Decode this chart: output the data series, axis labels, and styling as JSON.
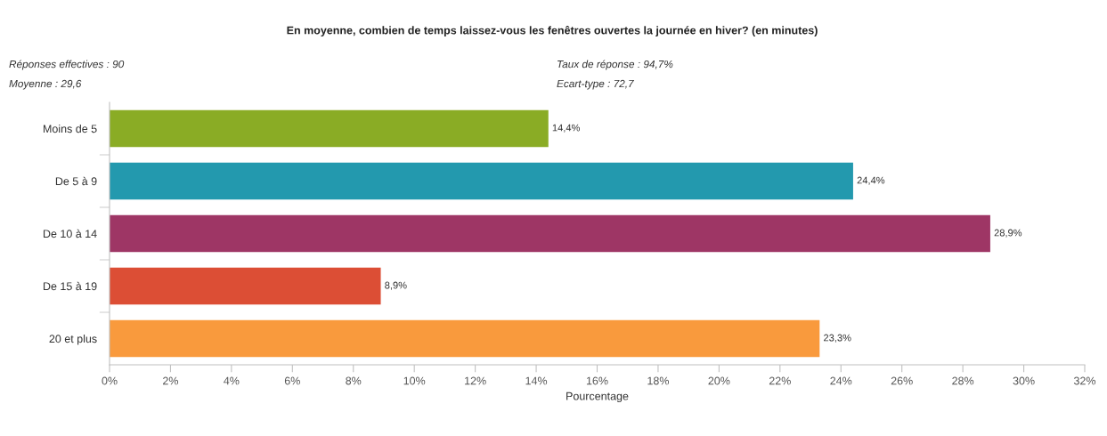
{
  "chart_data": {
    "type": "bar",
    "orientation": "horizontal",
    "title": "En moyenne, combien de temps laissez-vous les fenêtres ouvertes la journée en hiver? (en minutes)",
    "annotations": [
      "Réponses effectives : 90",
      "Moyenne : 29,6",
      "Taux de réponse : 94,7%",
      "Ecart-type : 72,7"
    ],
    "categories": [
      "Moins de 5",
      "De 5 à 9",
      "De 10 à 14",
      "De 15 à 19",
      "20 et plus"
    ],
    "values": [
      14.4,
      24.4,
      28.9,
      8.9,
      23.3
    ],
    "colors": [
      "#8aac25",
      "#2399ae",
      "#9e3665",
      "#dc4e35",
      "#f99a3d"
    ],
    "value_labels": [
      "14,4%",
      "24,4%",
      "28,9%",
      "8,9%",
      "23,3%"
    ],
    "xlabel": "Pourcentage",
    "xlim": [
      0,
      32
    ],
    "xticks": [
      {
        "value": 0,
        "label": "0%"
      },
      {
        "value": 2,
        "label": "2%"
      },
      {
        "value": 4,
        "label": "4%"
      },
      {
        "value": 6,
        "label": "6%"
      },
      {
        "value": 8,
        "label": "8%"
      },
      {
        "value": 10,
        "label": "10%"
      },
      {
        "value": 12,
        "label": "12%"
      },
      {
        "value": 14,
        "label": "14%"
      },
      {
        "value": 16,
        "label": "16%"
      },
      {
        "value": 18,
        "label": "18%"
      },
      {
        "value": 20,
        "label": "20%"
      },
      {
        "value": 22,
        "label": "22%"
      },
      {
        "value": 24,
        "label": "24%"
      },
      {
        "value": 26,
        "label": "26%"
      },
      {
        "value": 28,
        "label": "28%"
      },
      {
        "value": 30,
        "label": "30%"
      },
      {
        "value": 32,
        "label": "32%"
      }
    ],
    "grid": false,
    "legend": false
  }
}
